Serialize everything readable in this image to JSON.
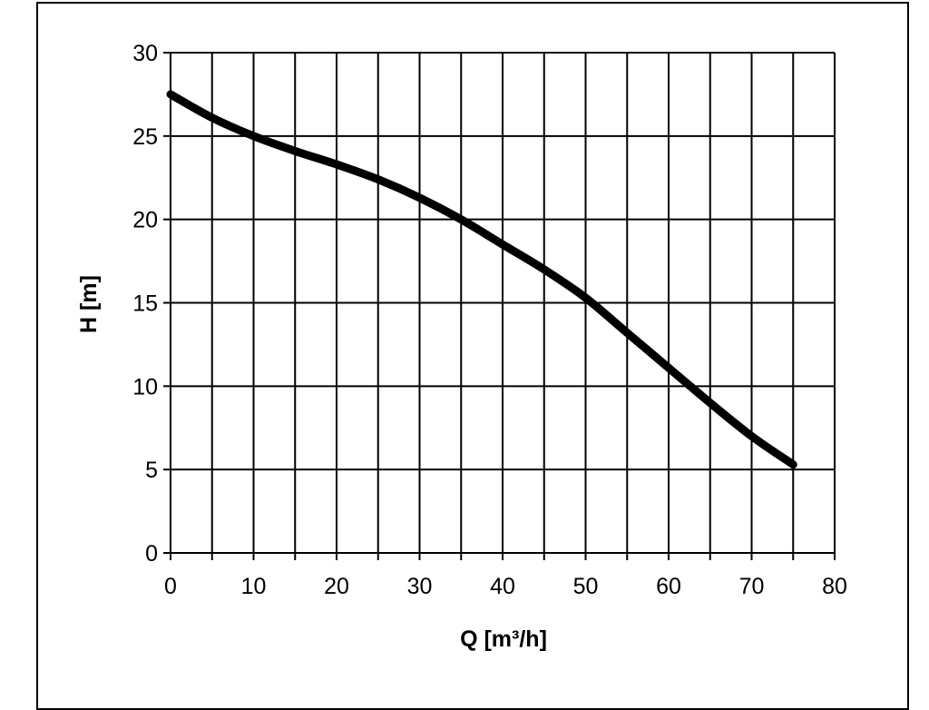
{
  "chart_data": {
    "type": "line",
    "xlabel": "Q [m³/h]",
    "ylabel": "H [m]",
    "xlim": [
      0,
      80
    ],
    "ylim": [
      0,
      30
    ],
    "xticks": [
      0,
      10,
      20,
      30,
      40,
      50,
      60,
      70,
      80
    ],
    "yticks": [
      0,
      5,
      10,
      15,
      20,
      25,
      30
    ],
    "minor_x_grid_step": 5,
    "grid": true,
    "series": [
      {
        "color": "#000000",
        "x": [
          0,
          5,
          10,
          15,
          20,
          25,
          30,
          35,
          40,
          45,
          50,
          55,
          60,
          65,
          70,
          75
        ],
        "y": [
          27.5,
          26.1,
          25.0,
          24.1,
          23.3,
          22.4,
          21.3,
          20.0,
          18.5,
          17.0,
          15.3,
          13.2,
          11.1,
          9.0,
          7.0,
          5.3
        ]
      }
    ]
  }
}
